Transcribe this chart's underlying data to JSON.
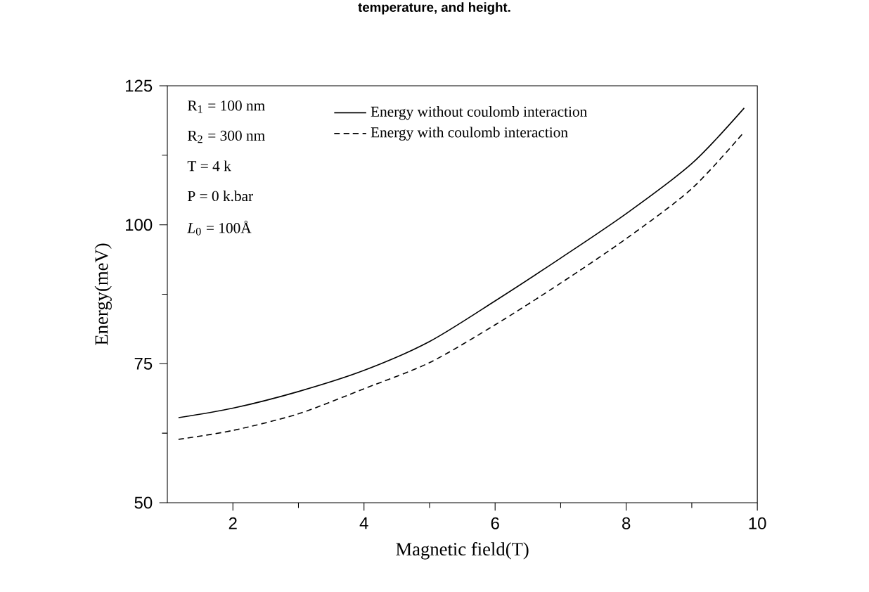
{
  "chart_data": {
    "type": "line",
    "title": "temperature, and height.",
    "xlabel": "Magnetic field(T)",
    "ylabel": "Energy(meV)",
    "xlim": [
      1,
      10
    ],
    "xticks": [
      2,
      4,
      6,
      8,
      10
    ],
    "ylim": [
      50,
      125
    ],
    "yticks": [
      50,
      75,
      100,
      125
    ],
    "legend": "top",
    "marker": "none",
    "grid": false,
    "annotations": [
      "R$_{1}$ = 100  nm",
      "R$_{2}$ = 300  nm",
      "T =  4 k",
      "P = 0 k.bar",
      "*L*$_{0}$ = 100Å"
    ],
    "series": [
      {
        "name": "Energy without coulomb interaction",
        "color": "#000000",
        "line_style": "solid",
        "x": [
          1.17,
          2,
          3,
          4,
          5,
          6,
          7,
          8,
          9,
          9.8
        ],
        "values": [
          65.3,
          67,
          70,
          73.8,
          79,
          86.3,
          94,
          102,
          111,
          121
        ]
      },
      {
        "name": "Energy with coulomb interaction",
        "color": "#000000",
        "line_style": "dashed",
        "x": [
          1.17,
          2,
          3,
          4,
          5,
          6,
          7,
          8,
          9,
          9.8
        ],
        "values": [
          61.4,
          63,
          66,
          70.5,
          75.2,
          82,
          89.5,
          97.5,
          106.5,
          116.7
        ]
      }
    ]
  }
}
